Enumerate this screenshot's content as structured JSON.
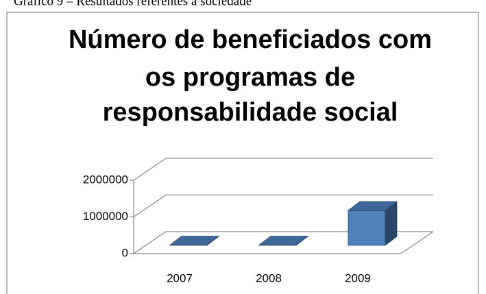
{
  "caption": "Gráfico 9 – Resultados referentes à sociedade",
  "chart_data": {
    "type": "bar3d",
    "title": [
      "Número de beneficiados com",
      "os programas de",
      "responsabilidade social"
    ],
    "categories": [
      "2007",
      "2008",
      "2009"
    ],
    "values": [
      10000,
      10000,
      950000
    ],
    "color": "#4f81bd",
    "ylim": [
      0,
      2000000
    ],
    "yticks": [
      0,
      1000000,
      2000000
    ],
    "grid": true
  }
}
